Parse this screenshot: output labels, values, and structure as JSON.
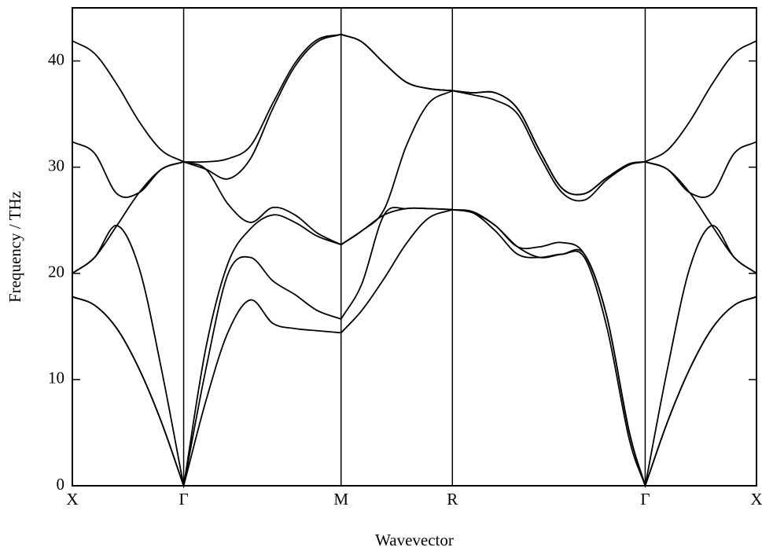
{
  "chart_data": {
    "type": "line",
    "x_label": "Wavevector",
    "y_label": "Frequency / THz",
    "x": [
      0,
      0.1,
      0.2,
      0.3,
      0.4,
      0.5,
      0.6,
      0.7,
      0.8,
      0.9,
      1.0,
      1.1,
      1.207,
      1.3,
      1.4,
      1.5,
      1.6,
      1.707,
      1.8,
      1.9,
      2.0,
      2.1,
      2.2,
      2.3,
      2.4,
      2.5,
      2.573,
      2.673,
      2.773,
      2.873,
      2.973,
      3.073
    ],
    "series": [
      {
        "color": "#000000",
        "values": [
          17.8,
          17,
          14.8,
          11,
          6,
          0,
          8,
          14.5,
          17.5,
          15.3,
          14.8,
          14.6,
          14.4,
          16.5,
          19.5,
          22.8,
          25.2,
          26,
          25.7,
          24,
          21.8,
          21.5,
          21.8,
          21.5,
          15,
          4.5,
          0,
          6,
          11,
          14.8,
          17,
          17.8
        ]
      },
      {
        "color": "#000000",
        "values": [
          17.8,
          17,
          14.8,
          11,
          6,
          0,
          11,
          20,
          21.5,
          19.3,
          18,
          16.5,
          15.7,
          19,
          25.5,
          26.1,
          26.1,
          26,
          25.7,
          24.5,
          22.5,
          21.5,
          21.8,
          21.8,
          16,
          5.2,
          0,
          6,
          11,
          14.8,
          17,
          17.8
        ]
      },
      {
        "color": "#000000",
        "values": [
          20,
          21.5,
          24.5,
          20.5,
          11,
          0,
          13,
          21,
          24.2,
          25.5,
          24.8,
          23.5,
          22.7,
          24,
          25.5,
          26.1,
          26.1,
          26,
          25.8,
          24.5,
          22.5,
          22.5,
          22.9,
          21.8,
          16,
          5.2,
          0,
          11,
          20.5,
          24.5,
          21.5,
          20
        ]
      },
      {
        "color": "#000000",
        "values": [
          20,
          21.5,
          24.5,
          27.6,
          29.8,
          30.5,
          29.8,
          26.5,
          24.8,
          26.2,
          25.5,
          23.8,
          22.7,
          24,
          26,
          32,
          36,
          37.2,
          36.8,
          36.3,
          35,
          31,
          27.6,
          26.9,
          28.8,
          30.2,
          30.5,
          29.8,
          27.6,
          24.5,
          21.5,
          20
        ]
      },
      {
        "color": "#000000",
        "values": [
          32.4,
          31.3,
          27.5,
          27.6,
          29.8,
          30.5,
          29.8,
          28.9,
          30.8,
          35.5,
          39.5,
          41.8,
          42.5,
          41.8,
          39.8,
          38,
          37.4,
          37.2,
          37,
          37,
          35.5,
          31.5,
          28,
          27.5,
          29,
          30.3,
          30.5,
          29.8,
          27.6,
          27.5,
          31.3,
          32.4
        ]
      },
      {
        "color": "#000000",
        "values": [
          41.9,
          40.7,
          37.8,
          34.3,
          31.6,
          30.5,
          30.5,
          30.8,
          32,
          36,
          39.8,
          42,
          42.5,
          41.8,
          39.8,
          38,
          37.4,
          37.2,
          37,
          37,
          35.5,
          31.5,
          28,
          27.5,
          29,
          30.3,
          30.5,
          31.6,
          34.3,
          37.8,
          40.7,
          41.9
        ]
      }
    ],
    "xlim": [
      0,
      3.073
    ],
    "xticks": [
      {
        "value": 0,
        "label": "X"
      },
      {
        "value": 0.5,
        "label": "Γ"
      },
      {
        "value": 1.207,
        "label": "M"
      },
      {
        "value": 1.707,
        "label": "R"
      },
      {
        "value": 2.573,
        "label": "Γ"
      },
      {
        "value": 3.073,
        "label": "X"
      }
    ],
    "ylim": [
      0,
      45
    ],
    "yticks": [
      0,
      10,
      20,
      30,
      40
    ],
    "grid": true
  }
}
